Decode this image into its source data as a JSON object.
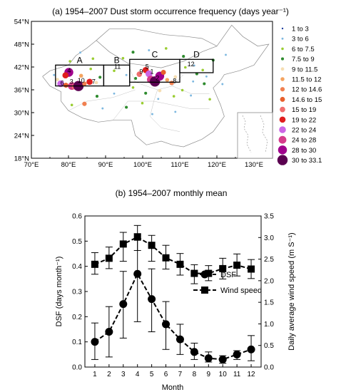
{
  "chart_data": [
    {
      "type": "scatter",
      "title": "(a) 1954–2007 Dust storm occurrence frequency (days year⁻¹)",
      "x_ticks": [
        "70°E",
        "80°E",
        "90°E",
        "100°E",
        "110°E",
        "120°E",
        "130°E"
      ],
      "y_ticks": [
        "54°N",
        "48°N",
        "42°N",
        "36°N",
        "30°N",
        "24°N",
        "18°N"
      ],
      "xlim": [
        70,
        135
      ],
      "ylim": [
        18,
        54
      ],
      "legend": {
        "placement": "right",
        "entries": [
          {
            "label": "1  to  3",
            "color": "#1f3f9f",
            "size": 1
          },
          {
            "label": "3  to  6",
            "color": "#7db8e0",
            "size": 1.2
          },
          {
            "label": "6  to  7.5",
            "color": "#9acd32",
            "size": 1.5
          },
          {
            "label": "7.5  to  9",
            "color": "#2e8b2e",
            "size": 1.7
          },
          {
            "label": "9  to  11.5",
            "color": "#f5deb3",
            "size": 2
          },
          {
            "label": "11.5  to  12",
            "color": "#f4a460",
            "size": 2.3
          },
          {
            "label": "12  to  14.6",
            "color": "#f08050",
            "size": 2.6
          },
          {
            "label": "14.6  to  15",
            "color": "#e8602c",
            "size": 2.9
          },
          {
            "label": "15  to  19",
            "color": "#f06e6e",
            "size": 3.2
          },
          {
            "label": "19  to  22",
            "color": "#e01e1e",
            "size": 3.6
          },
          {
            "label": "22  to  24",
            "color": "#cc66e6",
            "size": 4
          },
          {
            "label": "24  to  28",
            "color": "#d63c8c",
            "size": 4.5
          },
          {
            "label": "28  to  30",
            "color": "#a0008c",
            "size": 5.2
          },
          {
            "label": "30  to  33.1",
            "color": "#5a0050",
            "size": 6
          }
        ]
      },
      "regions": [
        {
          "label": "A",
          "lon": [
            76.5,
            89.5
          ],
          "lat": [
            37,
            42.5
          ]
        },
        {
          "label": "B",
          "lon": [
            89.5,
            96.5
          ],
          "lat": [
            37,
            42.5
          ]
        },
        {
          "label": "C",
          "lon": [
            96.5,
            110
          ],
          "lat": [
            38,
            44
          ]
        },
        {
          "label": "D",
          "lon": [
            110,
            119
          ],
          "lat": [
            40.5,
            44
          ]
        }
      ],
      "station_labels": [
        {
          "text": "4",
          "lon": 80.2,
          "lat": 40.5
        },
        {
          "text": "6",
          "lon": 78.3,
          "lat": 37.2
        },
        {
          "text": "3",
          "lon": 80.8,
          "lat": 37.6
        },
        {
          "text": "10",
          "lon": 83.4,
          "lat": 37.9
        },
        {
          "text": "7",
          "lon": 86.8,
          "lat": 37.6
        },
        {
          "text": "11",
          "lon": 93.2,
          "lat": 41.5
        },
        {
          "text": "5",
          "lon": 101.2,
          "lat": 41.5
        },
        {
          "text": "9",
          "lon": 99.6,
          "lat": 40.2
        },
        {
          "text": "1",
          "lon": 102.5,
          "lat": 40.2
        },
        {
          "text": "2",
          "lon": 104.0,
          "lat": 38.5
        },
        {
          "text": "8",
          "lon": 108.6,
          "lat": 37.8
        },
        {
          "text": "12",
          "lon": 113.0,
          "lat": 42.2
        }
      ],
      "points": [
        {
          "lon": 80.1,
          "lat": 40.6,
          "cls": 12
        },
        {
          "lon": 79.2,
          "lat": 39.8,
          "cls": 9
        },
        {
          "lon": 77.9,
          "lat": 37.6,
          "cls": 10
        },
        {
          "lon": 79.3,
          "lat": 37.2,
          "cls": 7
        },
        {
          "lon": 80.9,
          "lat": 37.0,
          "cls": 11
        },
        {
          "lon": 81.6,
          "lat": 36.8,
          "cls": 8
        },
        {
          "lon": 82.7,
          "lat": 37.0,
          "cls": 13
        },
        {
          "lon": 84.3,
          "lat": 37.6,
          "cls": 6
        },
        {
          "lon": 85.7,
          "lat": 38.1,
          "cls": 9
        },
        {
          "lon": 87.5,
          "lat": 37.9,
          "cls": 4
        },
        {
          "lon": 83.4,
          "lat": 39.7,
          "cls": 5
        },
        {
          "lon": 86.0,
          "lat": 41.5,
          "cls": 2
        },
        {
          "lon": 88.5,
          "lat": 39.3,
          "cls": 3
        },
        {
          "lon": 92.3,
          "lat": 41.0,
          "cls": 2
        },
        {
          "lon": 95.6,
          "lat": 39.9,
          "cls": 1
        },
        {
          "lon": 99.1,
          "lat": 40.1,
          "cls": 8
        },
        {
          "lon": 100.8,
          "lat": 41.2,
          "cls": 9
        },
        {
          "lon": 101.7,
          "lat": 40.2,
          "cls": 10
        },
        {
          "lon": 102.2,
          "lat": 38.7,
          "cls": 11
        },
        {
          "lon": 103.3,
          "lat": 38.2,
          "cls": 13
        },
        {
          "lon": 104.6,
          "lat": 39.6,
          "cls": 12
        },
        {
          "lon": 105.6,
          "lat": 40.6,
          "cls": 7
        },
        {
          "lon": 106.6,
          "lat": 38.6,
          "cls": 5
        },
        {
          "lon": 107.8,
          "lat": 37.8,
          "cls": 6
        },
        {
          "lon": 108.8,
          "lat": 39.4,
          "cls": 4
        },
        {
          "lon": 98.1,
          "lat": 39.0,
          "cls": 3
        },
        {
          "lon": 111.5,
          "lat": 41.9,
          "cls": 2
        },
        {
          "lon": 113.9,
          "lat": 42.4,
          "cls": 1
        },
        {
          "lon": 116.2,
          "lat": 41.2,
          "cls": 2
        },
        {
          "lon": 111.0,
          "lat": 44.8,
          "cls": 3
        },
        {
          "lon": 106.3,
          "lat": 46.9,
          "cls": 2
        },
        {
          "lon": 101.7,
          "lat": 46.4,
          "cls": 1
        },
        {
          "lon": 97.4,
          "lat": 45.9,
          "cls": 3
        },
        {
          "lon": 94.7,
          "lat": 44.3,
          "cls": 2
        },
        {
          "lon": 113.6,
          "lat": 38.2,
          "cls": 1
        },
        {
          "lon": 116.6,
          "lat": 37.6,
          "cls": 3
        },
        {
          "lon": 110.7,
          "lat": 35.9,
          "cls": 2
        },
        {
          "lon": 104.6,
          "lat": 35.8,
          "cls": 4
        },
        {
          "lon": 100.8,
          "lat": 35.1,
          "cls": 3
        },
        {
          "lon": 97.4,
          "lat": 36.6,
          "cls": 2
        },
        {
          "lon": 92.3,
          "lat": 35.0,
          "cls": 1
        },
        {
          "lon": 87.7,
          "lat": 34.3,
          "cls": 3
        },
        {
          "lon": 84.3,
          "lat": 32.3,
          "cls": 6
        },
        {
          "lon": 80.9,
          "lat": 32.0,
          "cls": 2
        },
        {
          "lon": 77.0,
          "lat": 38.7,
          "cls": 4
        },
        {
          "lon": 76.1,
          "lat": 39.9,
          "cls": 1
        },
        {
          "lon": 89.2,
          "lat": 31.1,
          "cls": 1
        },
        {
          "lon": 95.6,
          "lat": 31.4,
          "cls": 3
        },
        {
          "lon": 99.9,
          "lat": 32.5,
          "cls": 2
        },
        {
          "lon": 104.2,
          "lat": 33.6,
          "cls": 1
        },
        {
          "lon": 108.4,
          "lat": 34.3,
          "cls": 2
        },
        {
          "lon": 113.0,
          "lat": 34.5,
          "cls": 1
        },
        {
          "lon": 118.1,
          "lat": 33.5,
          "cls": 2
        },
        {
          "lon": 121.5,
          "lat": 37.5,
          "cls": 1
        },
        {
          "lon": 122.4,
          "lat": 45.2,
          "cls": 1
        },
        {
          "lon": 119.0,
          "lat": 43.8,
          "cls": 3
        },
        {
          "lon": 108.8,
          "lat": 30.2,
          "cls": 1
        },
        {
          "lon": 102.6,
          "lat": 29.6,
          "cls": 1
        },
        {
          "lon": 86.6,
          "lat": 44.2,
          "cls": 2
        },
        {
          "lon": 83.2,
          "lat": 45.8,
          "cls": 1
        },
        {
          "lon": 80.4,
          "lat": 43.5,
          "cls": 2
        },
        {
          "lon": 114.6,
          "lat": 40.2,
          "cls": 3
        },
        {
          "lon": 117.2,
          "lat": 39.5,
          "cls": 1
        }
      ]
    },
    {
      "type": "line",
      "title": "(b) 1954–2007 monthly mean",
      "xlabel": "Month",
      "ylabel_left": "DSF (days month⁻¹)",
      "ylabel_right": "Daily average wind speed  (m S⁻¹)",
      "x": [
        1,
        2,
        3,
        4,
        5,
        6,
        7,
        8,
        9,
        10,
        11,
        12
      ],
      "ylim_left": [
        0,
        0.6
      ],
      "ylim_right": [
        0,
        3.5
      ],
      "left_ticks": [
        "0.0",
        "0.1",
        "0.2",
        "0.3",
        "0.4",
        "0.5",
        "0.6"
      ],
      "right_ticks": [
        "0.0",
        "0.5",
        "1.0",
        "1.5",
        "2.0",
        "2.5",
        "3.0",
        "3.5"
      ],
      "legend_placement": "center-right",
      "series": [
        {
          "name": "DSF",
          "marker": "circle",
          "axis": "left",
          "values": [
            0.1,
            0.14,
            0.25,
            0.37,
            0.27,
            0.17,
            0.11,
            0.06,
            0.035,
            0.03,
            0.05,
            0.07
          ],
          "err_low": [
            0.03,
            0.04,
            0.115,
            0.18,
            0.14,
            0.07,
            0.05,
            0.03,
            0.02,
            0.015,
            0.03,
            0.025
          ],
          "err_high": [
            0.175,
            0.24,
            0.38,
            0.53,
            0.39,
            0.26,
            0.17,
            0.095,
            0.06,
            0.045,
            0.065,
            0.125
          ]
        },
        {
          "name": "Wind speed",
          "marker": "square",
          "axis": "right",
          "values": [
            2.38,
            2.52,
            2.85,
            3.01,
            2.82,
            2.53,
            2.38,
            2.17,
            2.17,
            2.28,
            2.36,
            2.27
          ],
          "err_low": [
            2.15,
            2.28,
            2.45,
            2.7,
            2.45,
            2.27,
            2.13,
            1.93,
            2.0,
            2.04,
            2.11,
            2.05
          ],
          "err_high": [
            2.65,
            2.78,
            3.12,
            3.28,
            3.05,
            2.82,
            2.63,
            2.37,
            2.35,
            2.52,
            2.62,
            2.49
          ]
        }
      ]
    }
  ]
}
